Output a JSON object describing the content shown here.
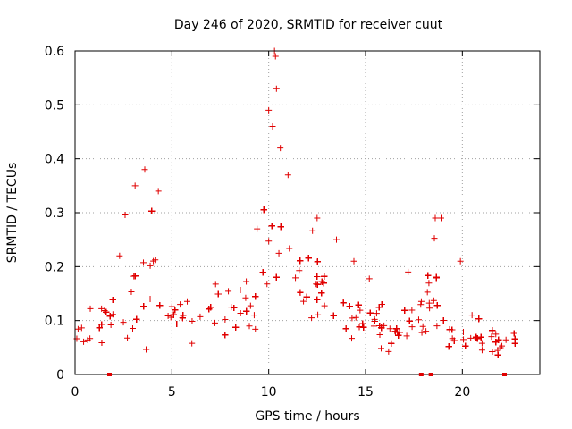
{
  "chart_data": {
    "type": "scatter",
    "title": "Day 246 of 2020, SRMTID for receiver cuut",
    "xlabel": "GPS time / hours",
    "ylabel": "SRMTID / TECUs",
    "xlim": [
      0,
      24
    ],
    "ylim": [
      0,
      0.6
    ],
    "xticks": [
      0,
      5,
      10,
      15,
      20
    ],
    "xtick_labels": [
      "0",
      "5",
      "10",
      "15",
      "20"
    ],
    "yticks": [
      0,
      0.1,
      0.2,
      0.3,
      0.4,
      0.5,
      0.6
    ],
    "ytick_labels": [
      "0",
      "0.1",
      "0.2",
      "0.3",
      "0.4",
      "0.5",
      "0.6"
    ],
    "grid": true,
    "marker": "plus",
    "color": "#e00000",
    "x_range_data": [
      0,
      22.8
    ],
    "gap_markers_x": [
      1.8,
      17.9,
      18.4,
      22.2
    ],
    "envelope": {
      "x": [
        0.0,
        0.5,
        1.0,
        1.5,
        2.0,
        2.5,
        3.0,
        3.5,
        4.0,
        4.5,
        5.0,
        5.5,
        6.0,
        6.5,
        7.0,
        7.5,
        8.0,
        8.5,
        9.0,
        9.5,
        10.0,
        10.3,
        10.6,
        11.0,
        11.5,
        12.0,
        12.5,
        13.0,
        13.5,
        14.0,
        14.5,
        15.0,
        15.5,
        16.0,
        16.5,
        17.0,
        17.5,
        18.0,
        18.5,
        19.0,
        19.5,
        20.0,
        20.5,
        21.0,
        21.5,
        22.0,
        22.5,
        22.8
      ],
      "base": [
        0.07,
        0.07,
        0.08,
        0.09,
        0.11,
        0.13,
        0.15,
        0.16,
        0.15,
        0.13,
        0.11,
        0.11,
        0.11,
        0.12,
        0.12,
        0.12,
        0.11,
        0.11,
        0.12,
        0.15,
        0.22,
        0.3,
        0.28,
        0.22,
        0.17,
        0.16,
        0.15,
        0.13,
        0.12,
        0.11,
        0.1,
        0.1,
        0.09,
        0.09,
        0.09,
        0.09,
        0.09,
        0.1,
        0.12,
        0.1,
        0.07,
        0.06,
        0.06,
        0.06,
        0.05,
        0.05,
        0.05,
        0.05
      ],
      "spread": [
        0.03,
        0.03,
        0.04,
        0.05,
        0.06,
        0.08,
        0.1,
        0.12,
        0.1,
        0.08,
        0.06,
        0.06,
        0.06,
        0.06,
        0.06,
        0.06,
        0.06,
        0.06,
        0.07,
        0.09,
        0.15,
        0.18,
        0.14,
        0.1,
        0.07,
        0.07,
        0.06,
        0.06,
        0.06,
        0.05,
        0.05,
        0.05,
        0.05,
        0.05,
        0.05,
        0.05,
        0.05,
        0.06,
        0.08,
        0.06,
        0.04,
        0.04,
        0.03,
        0.03,
        0.03,
        0.03,
        0.03,
        0.03
      ]
    },
    "notable_points": [
      {
        "x": 3.6,
        "y": 0.38
      },
      {
        "x": 4.3,
        "y": 0.34
      },
      {
        "x": 10.3,
        "y": 0.6
      },
      {
        "x": 10.35,
        "y": 0.59
      },
      {
        "x": 10.4,
        "y": 0.53
      },
      {
        "x": 10.0,
        "y": 0.49
      },
      {
        "x": 10.2,
        "y": 0.46
      },
      {
        "x": 10.6,
        "y": 0.42
      },
      {
        "x": 11.0,
        "y": 0.37
      },
      {
        "x": 12.5,
        "y": 0.29
      },
      {
        "x": 13.5,
        "y": 0.25
      },
      {
        "x": 14.4,
        "y": 0.21
      },
      {
        "x": 17.2,
        "y": 0.19
      },
      {
        "x": 18.6,
        "y": 0.29
      },
      {
        "x": 18.9,
        "y": 0.29
      },
      {
        "x": 19.9,
        "y": 0.21
      },
      {
        "x": 3.1,
        "y": 0.35
      },
      {
        "x": 2.3,
        "y": 0.22
      },
      {
        "x": 9.4,
        "y": 0.27
      },
      {
        "x": 20.5,
        "y": 0.11
      }
    ]
  }
}
